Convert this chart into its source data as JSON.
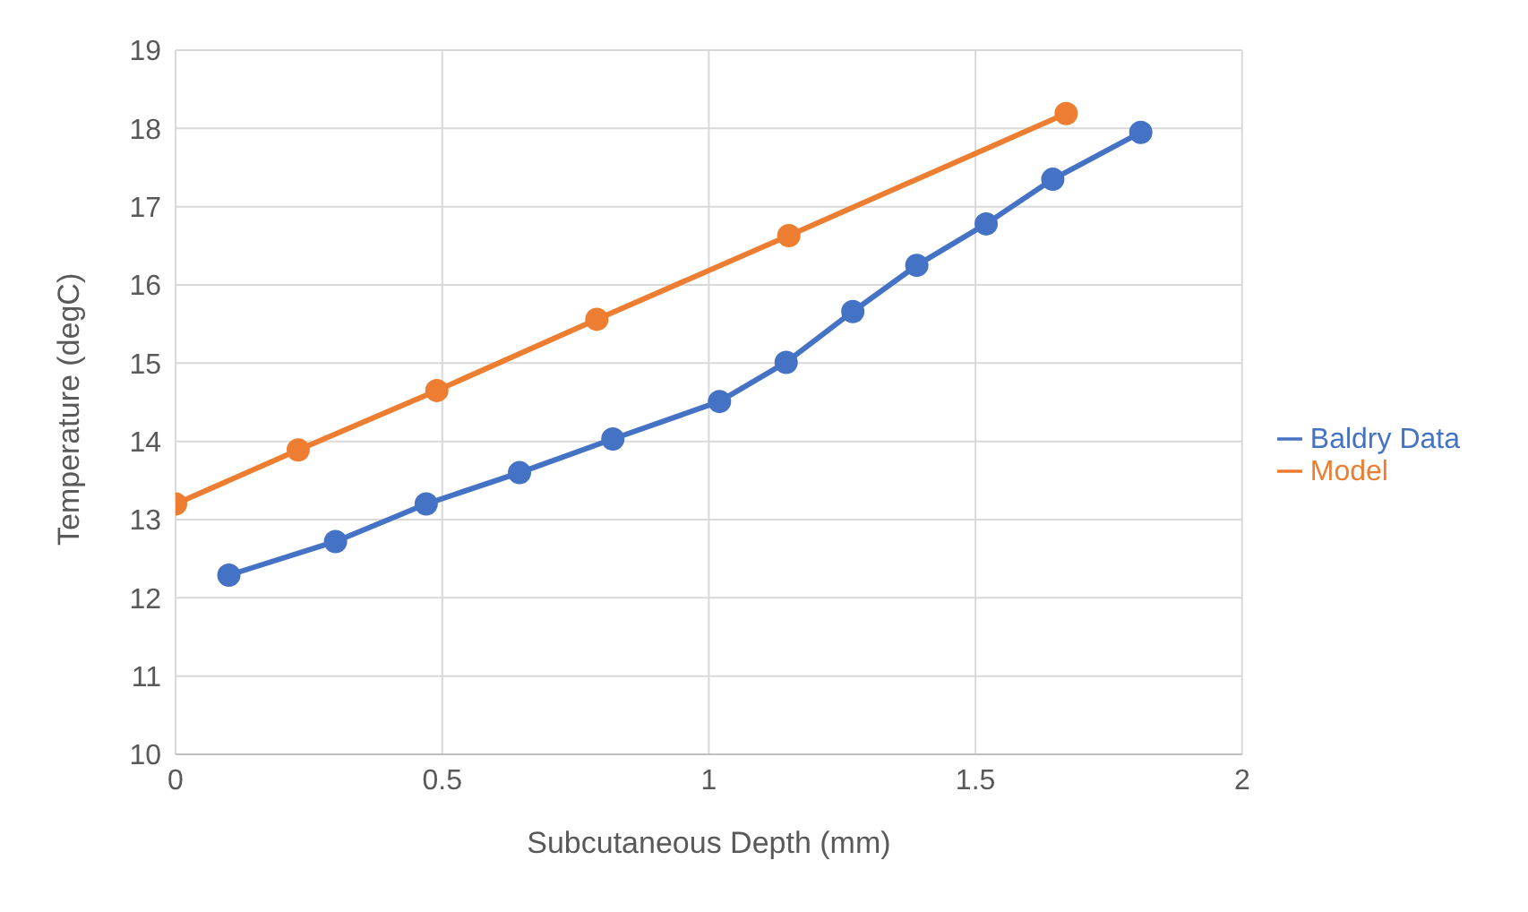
{
  "chart_data": {
    "type": "line",
    "xlabel": "Subcutaneous Depth (mm)",
    "ylabel": "Temperature (degC)",
    "xlim": [
      0,
      2
    ],
    "xticks": [
      0,
      0.5,
      1,
      1.5,
      2
    ],
    "ylim": [
      10,
      19
    ],
    "yticks": [
      10,
      11,
      12,
      13,
      14,
      15,
      16,
      17,
      18,
      19
    ],
    "grid": true,
    "legend": "right",
    "marker": "circle",
    "line_style": "solid",
    "series": [
      {
        "name": "Baldry Data",
        "color": "#4472c4",
        "x": [
          0.1,
          0.3,
          0.47,
          0.645,
          0.82,
          1.02,
          1.145,
          1.27,
          1.39,
          1.52,
          1.645,
          1.81
        ],
        "values": [
          12.29,
          12.72,
          13.2,
          13.6,
          14.03,
          14.51,
          15.01,
          15.66,
          16.25,
          16.78,
          17.35,
          17.95
        ]
      },
      {
        "name": "Model",
        "color": "#ed7d31",
        "x": [
          0,
          0.23,
          0.49,
          0.79,
          1.15,
          1.67
        ],
        "values": [
          13.2,
          13.89,
          14.65,
          15.56,
          16.63,
          18.19
        ]
      }
    ]
  }
}
